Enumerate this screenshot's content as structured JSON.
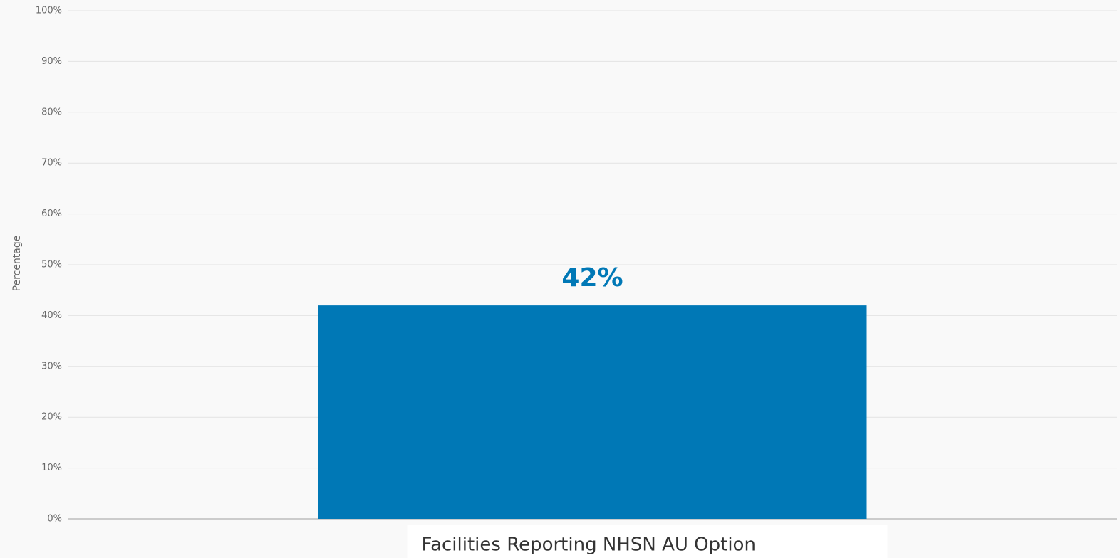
{
  "chart_data": {
    "type": "bar",
    "y_label": "Percentage",
    "categories": [
      "Facilities Reporting NHSN AU Option"
    ],
    "values": [
      42
    ],
    "value_labels": [
      "42%"
    ],
    "color": "#0078b6",
    "ylim": [
      0,
      100
    ],
    "yticks": [
      {
        "value": 0,
        "label": "0%"
      },
      {
        "value": 10,
        "label": "10%"
      },
      {
        "value": 20,
        "label": "20%"
      },
      {
        "value": 30,
        "label": "30%"
      },
      {
        "value": 40,
        "label": "40%"
      },
      {
        "value": 50,
        "label": "50%"
      },
      {
        "value": 60,
        "label": "60%"
      },
      {
        "value": 70,
        "label": "70%"
      },
      {
        "value": 80,
        "label": "80%"
      },
      {
        "value": 90,
        "label": "90%"
      },
      {
        "value": 100,
        "label": "100%"
      }
    ],
    "grid": true
  }
}
